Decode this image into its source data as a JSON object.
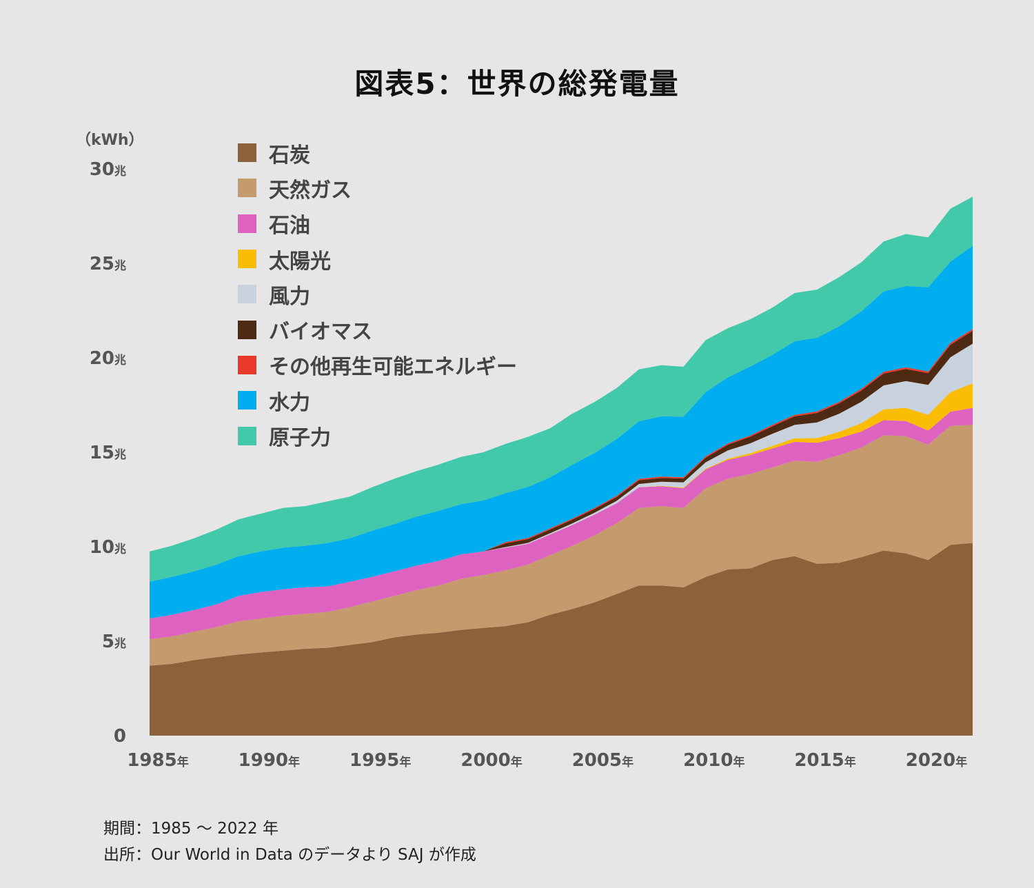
{
  "page": {
    "title": "図表5：世界の総発電量",
    "unit": "（kWh）",
    "footer": {
      "period": "期間：1985 〜 2022 年",
      "source": "出所：Our World in Data のデータより SAJ が作成"
    }
  },
  "chart_data": {
    "type": "area",
    "title": "図表5：世界の総発電量",
    "ylabel": "（kWh）",
    "xlabel": "",
    "ylim": [
      0,
      30
    ],
    "xlim": [
      1985,
      2022
    ],
    "y_ticks": [
      {
        "value": 0,
        "label": "0",
        "suffix": ""
      },
      {
        "value": 5,
        "label": "5",
        "suffix": "兆"
      },
      {
        "value": 10,
        "label": "10",
        "suffix": "兆"
      },
      {
        "value": 15,
        "label": "15",
        "suffix": "兆"
      },
      {
        "value": 20,
        "label": "20",
        "suffix": "兆"
      },
      {
        "value": 25,
        "label": "25",
        "suffix": "兆"
      },
      {
        "value": 30,
        "label": "30",
        "suffix": "兆"
      }
    ],
    "x_ticks": [
      {
        "value": 1985,
        "label": "1985",
        "suffix": "年"
      },
      {
        "value": 1990,
        "label": "1990",
        "suffix": "年"
      },
      {
        "value": 1995,
        "label": "1995",
        "suffix": "年"
      },
      {
        "value": 2000,
        "label": "2000",
        "suffix": "年"
      },
      {
        "value": 2005,
        "label": "2005",
        "suffix": "年"
      },
      {
        "value": 2010,
        "label": "2010",
        "suffix": "年"
      },
      {
        "value": 2015,
        "label": "2015",
        "suffix": "年"
      },
      {
        "value": 2020,
        "label": "2020",
        "suffix": "年"
      }
    ],
    "stacked": true,
    "legend_position": "top-left",
    "grid": false,
    "x": [
      1985,
      1986,
      1987,
      1988,
      1989,
      1990,
      1991,
      1992,
      1993,
      1994,
      1995,
      1996,
      1997,
      1998,
      1999,
      2000,
      2001,
      2002,
      2003,
      2004,
      2005,
      2006,
      2007,
      2008,
      2009,
      2010,
      2011,
      2012,
      2013,
      2014,
      2015,
      2016,
      2017,
      2018,
      2019,
      2020,
      2021,
      2022
    ],
    "series": [
      {
        "name": "石炭",
        "color": "#8b6239",
        "values": [
          3.7,
          3.8,
          4.0,
          4.15,
          4.3,
          4.4,
          4.5,
          4.6,
          4.65,
          4.8,
          4.95,
          5.2,
          5.35,
          5.45,
          5.6,
          5.7,
          5.8,
          6.0,
          6.4,
          6.7,
          7.05,
          7.5,
          7.95,
          7.95,
          7.85,
          8.4,
          8.8,
          8.85,
          9.3,
          9.5,
          9.1,
          9.15,
          9.45,
          9.8,
          9.65,
          9.3,
          10.1,
          10.2
        ]
      },
      {
        "name": "天然ガス",
        "color": "#c59a6c",
        "values": [
          1.4,
          1.45,
          1.5,
          1.6,
          1.75,
          1.8,
          1.85,
          1.85,
          1.9,
          2.0,
          2.15,
          2.2,
          2.35,
          2.5,
          2.7,
          2.8,
          2.95,
          3.05,
          3.15,
          3.35,
          3.55,
          3.75,
          4.1,
          4.2,
          4.2,
          4.7,
          4.8,
          5.0,
          4.9,
          5.05,
          5.4,
          5.7,
          5.8,
          6.1,
          6.2,
          6.1,
          6.3,
          6.25
        ]
      },
      {
        "name": "石油",
        "color": "#de62c0",
        "values": [
          1.1,
          1.15,
          1.15,
          1.2,
          1.35,
          1.4,
          1.4,
          1.4,
          1.35,
          1.35,
          1.3,
          1.3,
          1.3,
          1.3,
          1.3,
          1.25,
          1.2,
          1.1,
          1.1,
          1.1,
          1.1,
          1.05,
          1.1,
          1.05,
          1.05,
          1.0,
          1.0,
          1.0,
          1.0,
          1.0,
          1.0,
          0.9,
          0.85,
          0.8,
          0.8,
          0.75,
          0.75,
          0.9
        ]
      },
      {
        "name": "太陽光",
        "color": "#fbbc04",
        "values": [
          0,
          0,
          0,
          0,
          0,
          0,
          0,
          0,
          0,
          0,
          0,
          0,
          0,
          0,
          0,
          0,
          0,
          0,
          0,
          0,
          0,
          0,
          0,
          0.02,
          0.03,
          0.03,
          0.06,
          0.1,
          0.14,
          0.19,
          0.25,
          0.33,
          0.44,
          0.57,
          0.7,
          0.83,
          1.03,
          1.3
        ]
      },
      {
        "name": "風力",
        "color": "#c8d2dc",
        "values": [
          0,
          0,
          0,
          0,
          0,
          0,
          0,
          0,
          0,
          0,
          0,
          0,
          0,
          0,
          0,
          0,
          0.03,
          0.05,
          0.06,
          0.08,
          0.1,
          0.13,
          0.17,
          0.22,
          0.28,
          0.34,
          0.44,
          0.52,
          0.64,
          0.71,
          0.83,
          0.96,
          1.13,
          1.27,
          1.42,
          1.59,
          1.85,
          2.1
        ]
      },
      {
        "name": "バイオマス",
        "color": "#4e2a12",
        "values": [
          0,
          0,
          0,
          0,
          0,
          0,
          0,
          0,
          0,
          0,
          0,
          0,
          0,
          0,
          0,
          0,
          0.2,
          0.2,
          0.2,
          0.2,
          0.2,
          0.2,
          0.2,
          0.2,
          0.2,
          0.25,
          0.3,
          0.35,
          0.4,
          0.45,
          0.5,
          0.55,
          0.6,
          0.63,
          0.64,
          0.62,
          0.66,
          0.68
        ]
      },
      {
        "name": "その他再生可能エネルギー",
        "color": "#e8392b",
        "values": [
          0,
          0,
          0,
          0,
          0,
          0,
          0,
          0,
          0,
          0,
          0,
          0,
          0,
          0,
          0,
          0,
          0.06,
          0.06,
          0.06,
          0.06,
          0.06,
          0.07,
          0.07,
          0.07,
          0.07,
          0.07,
          0.07,
          0.07,
          0.08,
          0.08,
          0.08,
          0.08,
          0.09,
          0.09,
          0.09,
          0.09,
          0.1,
          0.1
        ]
      },
      {
        "name": "水力",
        "color": "#00aeef",
        "values": [
          1.95,
          2.0,
          2.05,
          2.1,
          2.1,
          2.15,
          2.2,
          2.2,
          2.3,
          2.3,
          2.45,
          2.5,
          2.6,
          2.65,
          2.65,
          2.7,
          2.6,
          2.7,
          2.7,
          2.85,
          2.9,
          3.0,
          3.05,
          3.2,
          3.2,
          3.4,
          3.5,
          3.65,
          3.7,
          3.9,
          3.9,
          4.0,
          4.1,
          4.25,
          4.3,
          4.45,
          4.3,
          4.4
        ]
      },
      {
        "name": "原子力",
        "color": "#41c9a9",
        "values": [
          1.6,
          1.65,
          1.75,
          1.85,
          1.95,
          2.0,
          2.1,
          2.1,
          2.2,
          2.2,
          2.3,
          2.4,
          2.4,
          2.45,
          2.5,
          2.55,
          2.6,
          2.65,
          2.6,
          2.7,
          2.7,
          2.7,
          2.75,
          2.7,
          2.65,
          2.75,
          2.6,
          2.5,
          2.5,
          2.55,
          2.55,
          2.6,
          2.6,
          2.65,
          2.75,
          2.65,
          2.8,
          2.6
        ]
      }
    ]
  }
}
